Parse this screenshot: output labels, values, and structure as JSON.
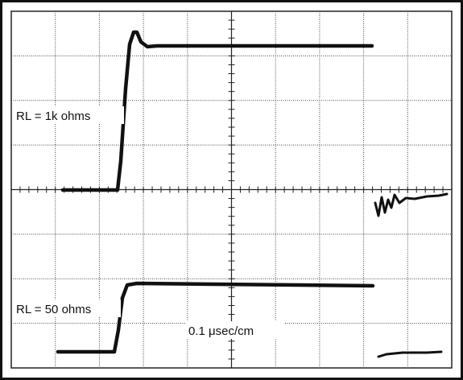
{
  "traces": [
    {
      "label": "RL = 1k ohms"
    },
    {
      "label": "RL = 50 ohms"
    }
  ],
  "timebase": "0.1 μsec/cm"
}
